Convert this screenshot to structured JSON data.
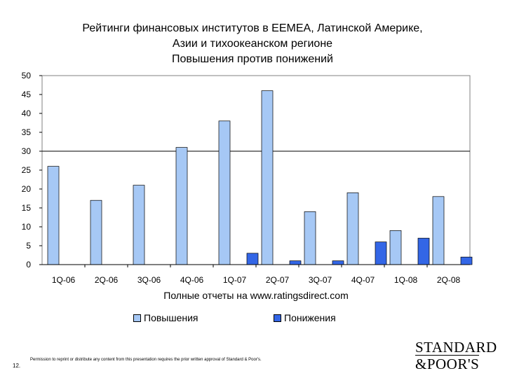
{
  "title": {
    "line1": "Рейтинги финансовых институтов в ЕЕМЕА, Латинской Америке,",
    "line2": "Азии и тихоокеанском регионе",
    "line3": "Повышения против понижений"
  },
  "colors": {
    "upgrades": "#a6c8f5",
    "downgrades": "#3366e6"
  },
  "chart_data": {
    "type": "bar",
    "categories": [
      "1Q-06",
      "2Q-06",
      "3Q-06",
      "4Q-06",
      "1Q-07",
      "2Q-07",
      "3Q-07",
      "4Q-07",
      "1Q-08",
      "2Q-08"
    ],
    "series": [
      {
        "name": "Повышения",
        "values": [
          26,
          17,
          21,
          31,
          38,
          46,
          14,
          19,
          9,
          18
        ]
      },
      {
        "name": "Понижения",
        "values": [
          0,
          0,
          0,
          0,
          3,
          1,
          1,
          6,
          7,
          2
        ]
      }
    ],
    "xlabel": "Полные отчеты на www.ratingsdirect.com",
    "ylabel": "",
    "ylim": [
      0,
      50
    ],
    "yticks": [
      0,
      5,
      10,
      15,
      20,
      25,
      30,
      35,
      40,
      45,
      50
    ],
    "reference_line": 30,
    "legend_placement": "bottom"
  },
  "footer": {
    "page_number": "12.",
    "permission": "Permission to reprint or distribute any content from this presentation requires the prior written approval of Standard & Poor's."
  },
  "logo": {
    "line1": "STANDARD",
    "line2": "&POOR'S"
  }
}
